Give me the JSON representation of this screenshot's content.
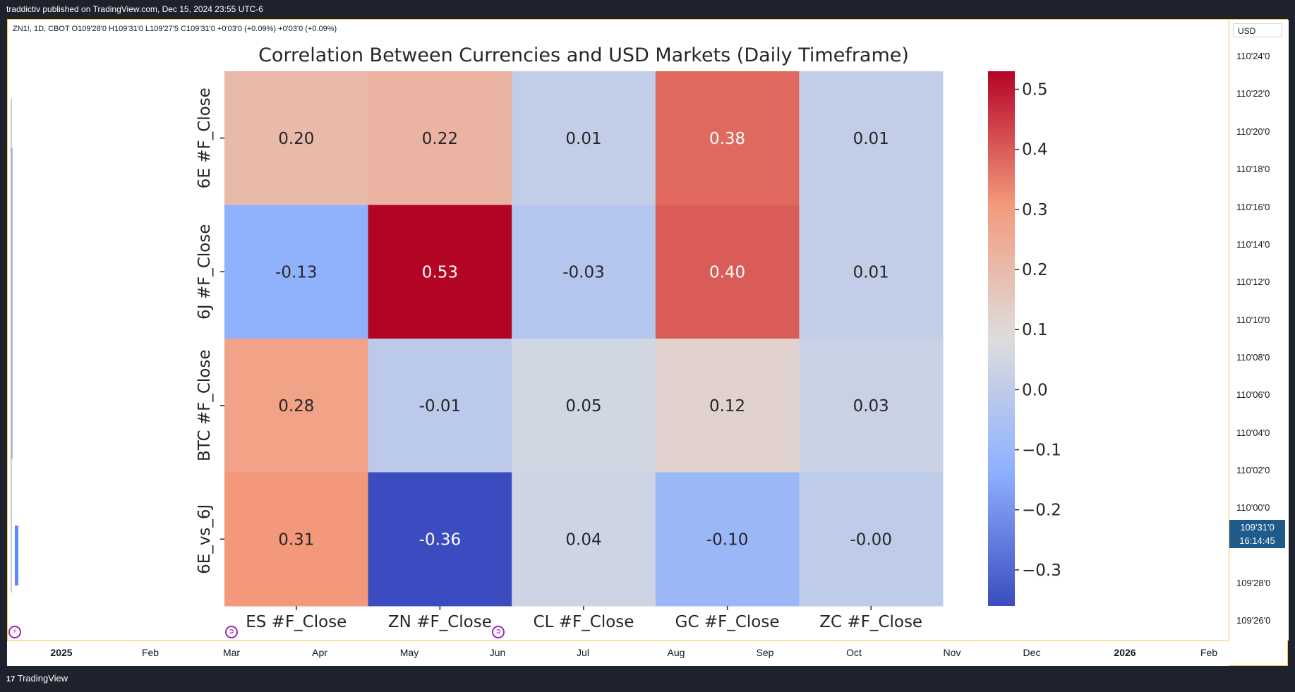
{
  "header": {
    "publisher": "traddictiv published on TradingView.com, Dec 15, 2024 23:55 UTC-6"
  },
  "symbol_line": "ZN1!, 1D, CBOT  O109'28'0  H109'31'0  L109'27'5  C109'31'0  +0'03'0 (+0.09%)  +0'03'0 (+0.09%)",
  "price_axis": {
    "currency": "USD",
    "labels": [
      "110'24'0",
      "110'22'0",
      "110'20'0",
      "110'18'0",
      "110'16'0",
      "110'14'0",
      "110'12'0",
      "110'10'0",
      "110'08'0",
      "110'06'0",
      "110'04'0",
      "110'02'0",
      "110'00'0",
      "109'28'0",
      "109'26'0"
    ],
    "current_price": "109'31'0",
    "countdown": "16:14:45"
  },
  "time_axis": {
    "labels": [
      {
        "text": "2025",
        "bold": true
      },
      {
        "text": "Feb",
        "bold": false
      },
      {
        "text": "Mar",
        "bold": false
      },
      {
        "text": "Apr",
        "bold": false
      },
      {
        "text": "May",
        "bold": false
      },
      {
        "text": "Jun",
        "bold": false
      },
      {
        "text": "Jul",
        "bold": false
      },
      {
        "text": "Aug",
        "bold": false
      },
      {
        "text": "Sep",
        "bold": false
      },
      {
        "text": "Oct",
        "bold": false
      },
      {
        "text": "Nov",
        "bold": false
      },
      {
        "text": "Dec",
        "bold": false
      },
      {
        "text": "2026",
        "bold": true
      },
      {
        "text": "Feb",
        "bold": false
      }
    ]
  },
  "footer": {
    "brand": "TradingView",
    "logo_glyph": "17"
  },
  "colors": {
    "frame_border": "#f2c94c",
    "marker": "#9c27b0",
    "badge": "#1e5a8a"
  },
  "chart_data": {
    "type": "heatmap",
    "title": "Correlation Between Currencies and USD Markets (Daily Timeframe)",
    "rows": [
      "6E #F_Close",
      "6J #F_Close",
      "BTC #F_Close",
      "6E_vs_6J"
    ],
    "columns": [
      "ES #F_Close",
      "ZN #F_Close",
      "CL #F_Close",
      "GC #F_Close",
      "ZC #F_Close"
    ],
    "values": [
      [
        0.2,
        0.22,
        0.01,
        0.38,
        0.01
      ],
      [
        -0.13,
        0.53,
        -0.03,
        0.4,
        0.01
      ],
      [
        0.28,
        -0.01,
        0.05,
        0.12,
        0.03
      ],
      [
        0.31,
        -0.36,
        0.04,
        -0.1,
        -0.0
      ]
    ],
    "value_labels": [
      [
        "0.20",
        "0.22",
        "0.01",
        "0.38",
        "0.01"
      ],
      [
        "-0.13",
        "0.53",
        "-0.03",
        "0.40",
        "0.01"
      ],
      [
        "0.28",
        "-0.01",
        "0.05",
        "0.12",
        "0.03"
      ],
      [
        "0.31",
        "-0.36",
        "0.04",
        "-0.10",
        "-0.00"
      ]
    ],
    "colormap": "coolwarm",
    "colorbar": {
      "range": [
        -0.36,
        0.53
      ],
      "ticks": [
        0.5,
        0.4,
        0.3,
        0.2,
        0.1,
        0.0,
        -0.1,
        -0.2,
        -0.3
      ],
      "tick_labels": [
        "0.5",
        "0.4",
        "0.3",
        "0.2",
        "0.1",
        "0.0",
        "−0.1",
        "−0.2",
        "−0.3"
      ]
    }
  }
}
